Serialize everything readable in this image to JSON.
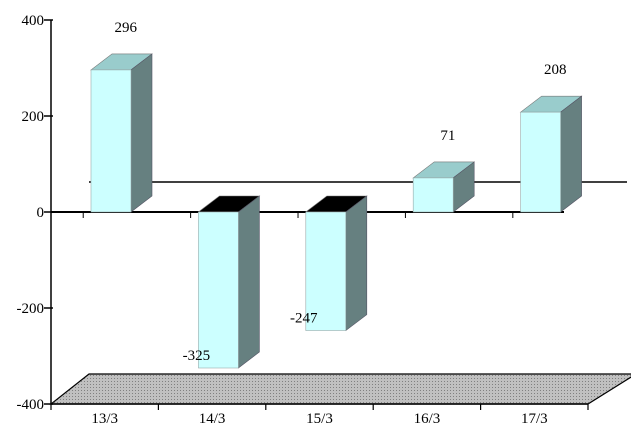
{
  "chart_data": {
    "type": "bar",
    "categories": [
      "13/3",
      "14/3",
      "15/3",
      "16/3",
      "17/3"
    ],
    "values": [
      296,
      -325,
      -247,
      71,
      208
    ],
    "data_labels": [
      "296",
      "-325",
      "-247",
      "71",
      "208"
    ],
    "yticks": [
      400,
      200,
      0,
      -200,
      -400
    ],
    "ylim": [
      -400,
      400
    ],
    "title": "",
    "xlabel": "",
    "ylabel": "",
    "grid": false,
    "legend": "none",
    "colors": {
      "bar_front": "#ccffff",
      "bar_side": "#668080",
      "bar_top": "#99cccc",
      "bar_top_shadow": "#000000",
      "floor": "#c0c0c0",
      "axis": "#000000"
    }
  }
}
